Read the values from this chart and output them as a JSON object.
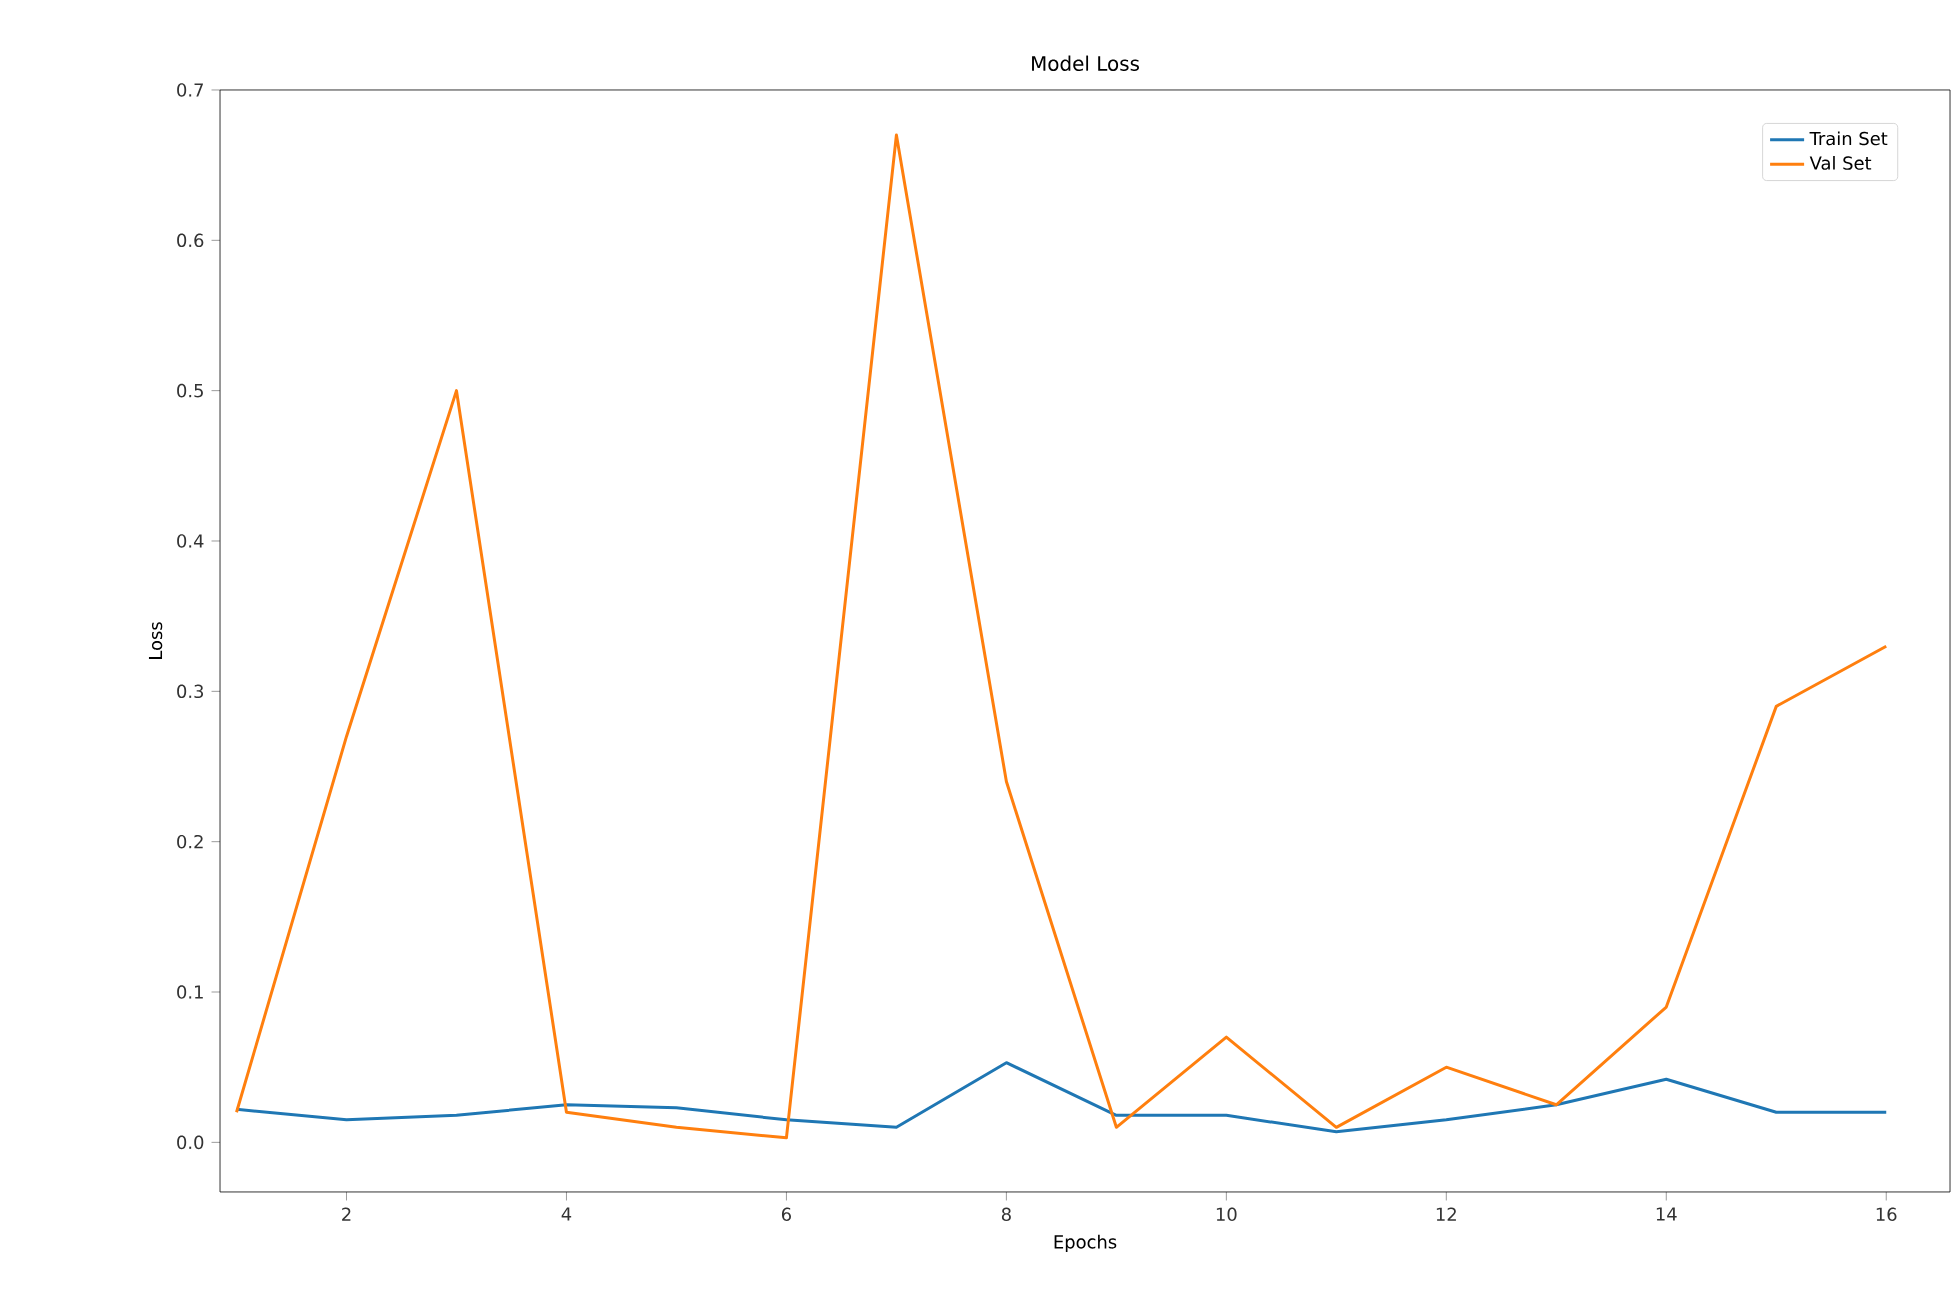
{
  "chart_data": {
    "type": "line",
    "title": "Model Loss",
    "xlabel": "Epochs",
    "ylabel": "Loss",
    "x": [
      1,
      2,
      3,
      4,
      5,
      6,
      7,
      8,
      9,
      10,
      11,
      12,
      13,
      14,
      15,
      16
    ],
    "series": [
      {
        "name": "Train Set",
        "color": "#1f77b4",
        "values": [
          0.022,
          0.015,
          0.018,
          0.025,
          0.023,
          0.015,
          0.01,
          0.053,
          0.018,
          0.018,
          0.007,
          0.015,
          0.025,
          0.042,
          0.02,
          0.02
        ]
      },
      {
        "name": "Val Set",
        "color": "#ff7f0e",
        "values": [
          0.02,
          0.27,
          0.5,
          0.02,
          0.01,
          0.003,
          0.67,
          0.24,
          0.01,
          0.07,
          0.01,
          0.05,
          0.025,
          0.09,
          0.29,
          0.33
        ]
      }
    ],
    "xlim": [
      0.85,
      16.58
    ],
    "ylim": [
      -0.033,
      0.7
    ],
    "xticks": [
      2,
      4,
      6,
      8,
      10,
      12,
      14,
      16
    ],
    "yticks": [
      {
        "value": 0,
        "label": "0.0"
      },
      0.1,
      0.2,
      0.3,
      0.4,
      0.5,
      0.6,
      0.7
    ],
    "legend": "top right",
    "grid": false,
    "marker": "none",
    "line_style": "solid"
  }
}
